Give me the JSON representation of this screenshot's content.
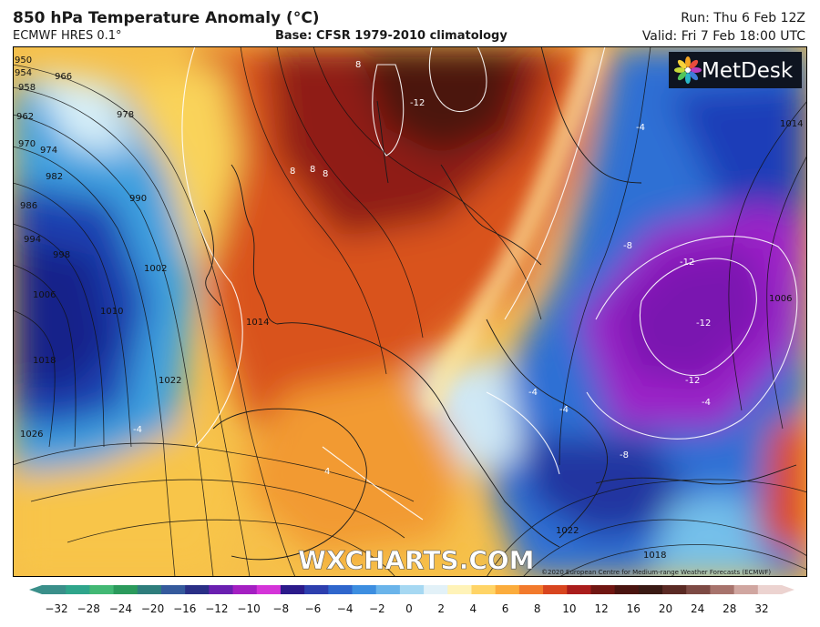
{
  "header": {
    "title": "850 hPa Temperature Anomaly (°C)",
    "model": "ECMWF HRES 0.1°",
    "base": "Base: CFSR 1979-2010 climatology",
    "run": "Run: Thu 6 Feb 12Z",
    "valid": "Valid: Fri 7 Feb 18:00 UTC"
  },
  "branding": {
    "logo_text": "MetDesk",
    "watermark": "WXCHARTS.COM",
    "credit": "©2020 European Centre for Medium-range Weather Forecasts (ECMWF)"
  },
  "isobar_labels": [
    "950",
    "954",
    "958",
    "962",
    "966",
    "970",
    "974",
    "978",
    "982",
    "986",
    "990",
    "994",
    "998",
    "1002",
    "1006",
    "1010",
    "1014",
    "1018",
    "1022",
    "1026",
    "1006",
    "1014",
    "1018",
    "1022"
  ],
  "anomaly_labels": [
    "8",
    "-12",
    "8",
    "8",
    "8",
    "-4",
    "-8",
    "-12",
    "-12",
    "-12",
    "-4",
    "-4",
    "-4",
    "-8",
    "4",
    "-4"
  ],
  "colorbar": {
    "ticks": [
      "−32",
      "−28",
      "−24",
      "−20",
      "−16",
      "−12",
      "−10",
      "−8",
      "−6",
      "−4",
      "−2",
      "0",
      "2",
      "4",
      "6",
      "8",
      "10",
      "12",
      "16",
      "20",
      "24",
      "28",
      "32"
    ],
    "colors": [
      "#3a8f8a",
      "#2fa58b",
      "#42b874",
      "#2b9a5c",
      "#2e7d7c",
      "#355a9c",
      "#2a2f86",
      "#6a1fb0",
      "#a41fc2",
      "#d434d8",
      "#2b1a8a",
      "#2d3fae",
      "#2f66cc",
      "#3d8ee0",
      "#6ab4ea",
      "#a6d8f2",
      "#e2f1f8",
      "#fff3b8",
      "#ffd466",
      "#fbac3c",
      "#f27a2c",
      "#d8451f",
      "#aa1d1c",
      "#701612",
      "#4a1410",
      "#3a1a14",
      "#5a2a24",
      "#7d4a44",
      "#a7736c",
      "#d0a6a0",
      "#ecd3d0"
    ]
  }
}
